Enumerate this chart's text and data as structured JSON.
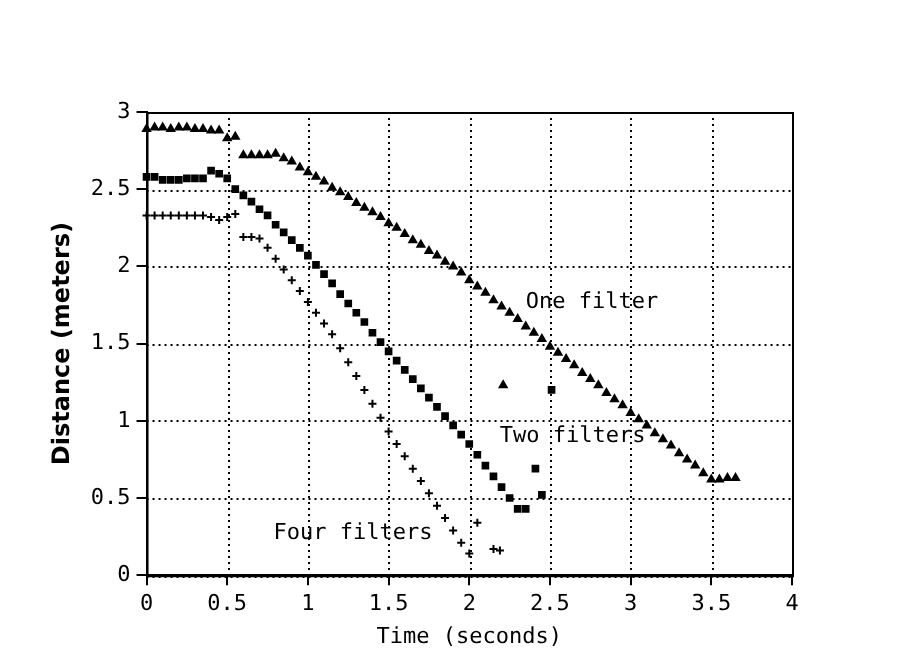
{
  "chart_data": {
    "type": "scatter",
    "xlabel": "Time (seconds)",
    "ylabel": "Distance (meters)",
    "xlim": [
      0,
      4
    ],
    "xticks": [
      0,
      0.5,
      1,
      1.5,
      2,
      2.5,
      3,
      3.5,
      4
    ],
    "ylim": [
      0,
      3
    ],
    "yticks": [
      0,
      0.5,
      1,
      1.5,
      2,
      2.5,
      3
    ],
    "grid": true,
    "legend": false,
    "series": [
      {
        "name": "One filter",
        "color": "#000000",
        "marker": "triangle",
        "x": [
          0,
          0.05,
          0.1,
          0.15,
          0.2,
          0.25,
          0.3,
          0.35,
          0.4,
          0.45,
          0.5,
          0.55,
          0.6,
          0.65,
          0.7,
          0.75,
          0.8,
          0.85,
          0.9,
          0.95,
          1.0,
          1.05,
          1.1,
          1.15,
          1.2,
          1.25,
          1.3,
          1.35,
          1.4,
          1.45,
          1.5,
          1.55,
          1.6,
          1.65,
          1.7,
          1.75,
          1.8,
          1.85,
          1.9,
          1.95,
          2.0,
          2.05,
          2.1,
          2.15,
          2.2,
          2.25,
          2.3,
          2.35,
          2.4,
          2.45,
          2.5,
          2.55,
          2.6,
          2.65,
          2.7,
          2.75,
          2.8,
          2.85,
          2.9,
          2.95,
          3.0,
          3.05,
          3.1,
          3.15,
          3.2,
          3.25,
          3.3,
          3.35,
          3.4,
          3.45,
          3.5,
          3.55,
          3.6,
          3.65,
          2.21
        ],
        "values": [
          2.89,
          2.9,
          2.9,
          2.89,
          2.9,
          2.9,
          2.89,
          2.89,
          2.88,
          2.88,
          2.83,
          2.84,
          2.72,
          2.72,
          2.72,
          2.72,
          2.73,
          2.7,
          2.68,
          2.64,
          2.61,
          2.58,
          2.55,
          2.51,
          2.48,
          2.45,
          2.41,
          2.38,
          2.35,
          2.32,
          2.28,
          2.25,
          2.21,
          2.17,
          2.14,
          2.1,
          2.07,
          2.03,
          2.0,
          1.96,
          1.91,
          1.87,
          1.83,
          1.78,
          1.74,
          1.7,
          1.66,
          1.61,
          1.57,
          1.53,
          1.48,
          1.44,
          1.4,
          1.36,
          1.31,
          1.27,
          1.23,
          1.18,
          1.14,
          1.1,
          1.05,
          1.01,
          0.97,
          0.92,
          0.88,
          0.84,
          0.79,
          0.75,
          0.71,
          0.66,
          0.62,
          0.62,
          0.63,
          0.63,
          1.23
        ]
      },
      {
        "name": "Two filters",
        "color": "#000000",
        "marker": "square",
        "x": [
          0,
          0.05,
          0.1,
          0.15,
          0.2,
          0.25,
          0.3,
          0.35,
          0.4,
          0.45,
          0.5,
          0.55,
          0.6,
          0.65,
          0.7,
          0.75,
          0.8,
          0.85,
          0.9,
          0.95,
          1.0,
          1.05,
          1.1,
          1.15,
          1.2,
          1.25,
          1.3,
          1.35,
          1.4,
          1.45,
          1.5,
          1.55,
          1.6,
          1.65,
          1.7,
          1.75,
          1.8,
          1.85,
          1.9,
          1.95,
          2.0,
          2.05,
          2.1,
          2.15,
          2.2,
          2.25,
          2.3,
          2.35,
          2.41,
          2.45,
          2.51
        ],
        "values": [
          2.58,
          2.58,
          2.56,
          2.56,
          2.56,
          2.57,
          2.57,
          2.57,
          2.62,
          2.6,
          2.57,
          2.5,
          2.46,
          2.42,
          2.37,
          2.33,
          2.27,
          2.22,
          2.17,
          2.12,
          2.07,
          2.01,
          1.95,
          1.89,
          1.82,
          1.76,
          1.7,
          1.64,
          1.57,
          1.51,
          1.45,
          1.39,
          1.33,
          1.27,
          1.21,
          1.15,
          1.09,
          1.03,
          0.97,
          0.91,
          0.85,
          0.78,
          0.71,
          0.64,
          0.57,
          0.5,
          0.43,
          0.43,
          0.69,
          0.52,
          1.2
        ]
      },
      {
        "name": "Four filters",
        "color": "#000000",
        "marker": "cross",
        "x": [
          0,
          0.05,
          0.1,
          0.15,
          0.2,
          0.25,
          0.3,
          0.35,
          0.4,
          0.45,
          0.5,
          0.55,
          0.6,
          0.65,
          0.7,
          0.75,
          0.8,
          0.85,
          0.9,
          0.95,
          1.0,
          1.05,
          1.1,
          1.15,
          1.2,
          1.25,
          1.3,
          1.35,
          1.4,
          1.45,
          1.5,
          1.55,
          1.6,
          1.65,
          1.7,
          1.75,
          1.8,
          1.85,
          1.9,
          1.95,
          2.0,
          2.05,
          2.15,
          2.19
        ],
        "values": [
          2.33,
          2.33,
          2.33,
          2.33,
          2.33,
          2.33,
          2.33,
          2.33,
          2.32,
          2.3,
          2.32,
          2.34,
          2.19,
          2.19,
          2.18,
          2.12,
          2.05,
          1.98,
          1.91,
          1.84,
          1.77,
          1.7,
          1.63,
          1.56,
          1.47,
          1.38,
          1.29,
          1.2,
          1.11,
          1.02,
          0.93,
          0.85,
          0.77,
          0.69,
          0.61,
          0.53,
          0.45,
          0.37,
          0.29,
          0.21,
          0.14,
          0.34,
          0.17,
          0.16
        ]
      }
    ]
  }
}
